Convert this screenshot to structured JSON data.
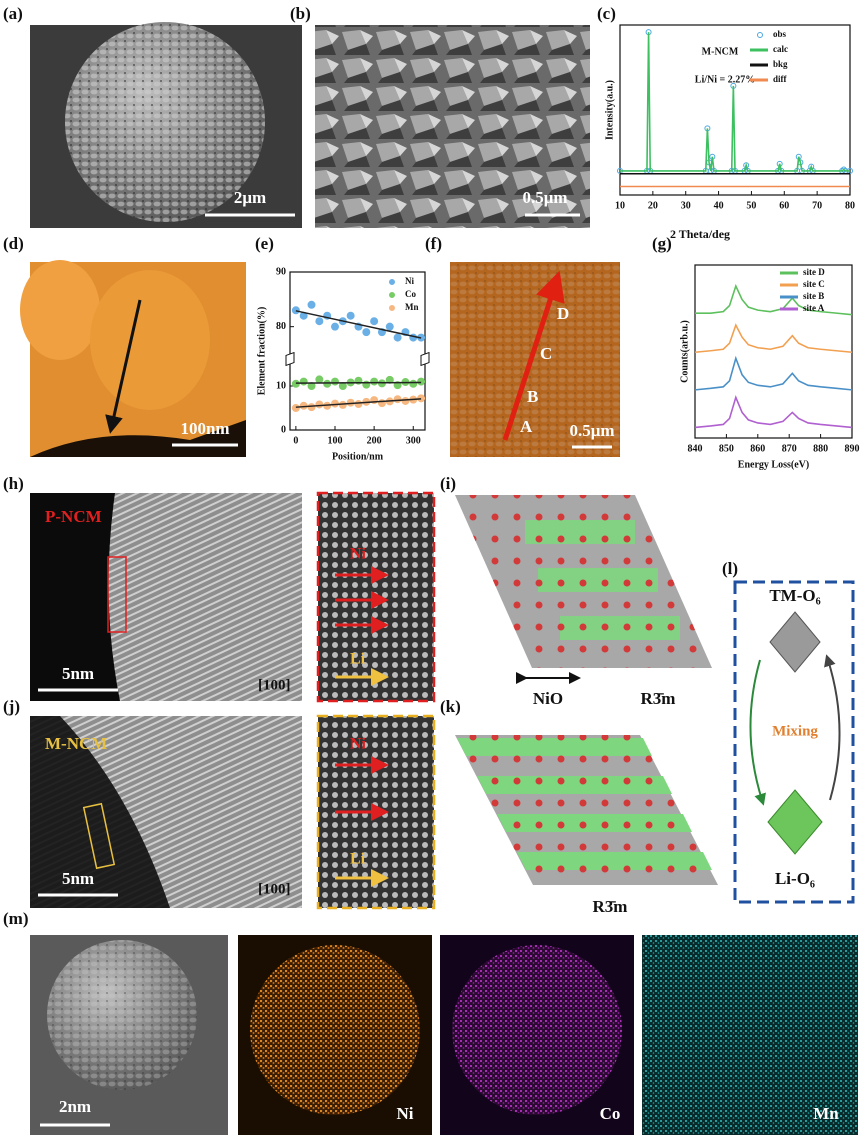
{
  "figure": {
    "a": {
      "label": "(a)",
      "scale_bar": "2μm"
    },
    "b": {
      "label": "(b)",
      "scale_bar": "0.5μm"
    },
    "d": {
      "label": "(d)",
      "scale_bar": "100nm"
    },
    "f": {
      "label": "(f)",
      "scale_bar": "0.5μm",
      "points": [
        "A",
        "B",
        "C",
        "D"
      ]
    },
    "h": {
      "label": "(h)",
      "sample": "P-NCM",
      "scale_bar": "5nm",
      "zone_axis": "[100]",
      "inset": [
        "Ni",
        "Li"
      ]
    },
    "i": {
      "label": "(i)",
      "phases": [
        "NiO",
        "R3̄m"
      ]
    },
    "j": {
      "label": "(j)",
      "sample": "M-NCM",
      "scale_bar": "5nm",
      "zone_axis": "[100]",
      "inset": [
        "Ni",
        "Li"
      ]
    },
    "k": {
      "label": "(k)",
      "phase": "R3̄m"
    },
    "l": {
      "label": "(l)",
      "top": "TM-O₆",
      "middle": "Mixing",
      "bottom": "Li-O₆"
    },
    "m": {
      "label": "(m)",
      "scale_bar": "2nm",
      "maps": [
        "Ni",
        "Co",
        "Mn"
      ]
    }
  },
  "chart_data": [
    {
      "type": "line",
      "panel_label": "(c)",
      "title": "M-NCM",
      "annotation": "Li/Ni = 2.27%",
      "x_label": "2 Theta/deg",
      "y_label": "Intensity(a.u.)",
      "x": [
        10,
        18.2,
        18.7,
        19.2,
        36.1,
        36.6,
        37.1,
        37.6,
        38.1,
        38.6,
        44.0,
        44.5,
        45.0,
        47.9,
        48.4,
        48.9,
        58.1,
        58.6,
        59.1,
        63.9,
        64.4,
        64.9,
        65.4,
        67.7,
        68.2,
        68.7,
        77.6,
        78.1,
        78.6,
        80
      ],
      "series": [
        {
          "name": "obs",
          "color": "#4aa8e0",
          "style": "open-circle",
          "values": [
            2,
            2,
            100,
            2,
            2,
            32,
            8,
            2,
            12,
            2,
            2,
            62,
            2,
            2,
            6,
            2,
            2,
            7,
            2,
            2,
            12,
            8,
            2,
            2,
            5,
            2,
            2,
            3,
            2,
            2
          ]
        },
        {
          "name": "calc",
          "color": "#3cc060",
          "style": "line",
          "values": [
            2,
            2,
            100,
            2,
            2,
            32,
            8,
            2,
            12,
            2,
            2,
            62,
            2,
            2,
            6,
            2,
            2,
            7,
            2,
            2,
            12,
            8,
            2,
            2,
            5,
            2,
            2,
            3,
            2,
            2
          ]
        },
        {
          "name": "bkg",
          "color": "#111111",
          "style": "line",
          "values": [
            0,
            0,
            0,
            0,
            0,
            0,
            0,
            0,
            0,
            0,
            0,
            0,
            0,
            0,
            0,
            0,
            0,
            0,
            0,
            0,
            0,
            0,
            0,
            0,
            0,
            0,
            0,
            0,
            0,
            0
          ]
        },
        {
          "name": "diff",
          "color": "#f08a50",
          "style": "line",
          "values": [
            -9,
            -9,
            -9,
            -9,
            -9,
            -9,
            -9,
            -9,
            -9,
            -9,
            -9,
            -9,
            -9,
            -9,
            -9,
            -9,
            -9,
            -9,
            -9,
            -9,
            -9,
            -9,
            -9,
            -9,
            -9,
            -9,
            -9,
            -9,
            -9,
            -9
          ]
        }
      ],
      "xlim": [
        10,
        80
      ],
      "xticks": [
        10,
        20,
        30,
        40,
        50,
        60,
        70,
        80
      ],
      "ylim": [
        -15,
        105
      ],
      "legend": "upper right"
    },
    {
      "type": "scatter",
      "panel_label": "(e)",
      "x_label": "Position/nm",
      "y_label": "Element fraction(%)",
      "x": [
        0,
        20,
        40,
        60,
        80,
        100,
        120,
        140,
        160,
        180,
        200,
        220,
        240,
        260,
        280,
        300,
        320
      ],
      "series": [
        {
          "name": "Ni",
          "color": "#6ab0e6",
          "values": [
            83,
            82,
            84,
            81,
            82,
            80,
            81,
            82,
            80,
            79,
            81,
            79,
            80,
            78,
            79,
            78,
            78
          ]
        },
        {
          "name": "Co",
          "color": "#78cc66",
          "values": [
            10.5,
            11,
            10,
            11.5,
            10.5,
            11,
            10,
            10.8,
            11.2,
            10.3,
            11,
            10.6,
            11.4,
            10.2,
            10.9,
            10.5,
            11
          ]
        },
        {
          "name": "Mn",
          "color": "#f6b880",
          "values": [
            5,
            5.5,
            5.2,
            5.8,
            5.5,
            6,
            5.7,
            6.2,
            5.9,
            6.4,
            6.8,
            6.1,
            6.5,
            7,
            6.6,
            6.9,
            7.2
          ]
        }
      ],
      "xlim": [
        -15,
        330
      ],
      "xticks": [
        0,
        100,
        200,
        300
      ],
      "ylim": [
        0,
        90
      ],
      "ybreak": [
        15,
        75
      ],
      "yticks": [
        0,
        10,
        80,
        90
      ],
      "fit_lines": true,
      "legend": "upper right"
    },
    {
      "type": "line",
      "panel_label": "(g)",
      "x_label": "Energy Loss(eV)",
      "y_label": "Counts(arb.u.)",
      "x": [
        840,
        845,
        849,
        851,
        853,
        855,
        857,
        860,
        864,
        868,
        871,
        873,
        876,
        880,
        885,
        890
      ],
      "series": [
        {
          "name": "site D",
          "color": "#5cc05c",
          "values": [
            78,
            78,
            79,
            83,
            96,
            87,
            82,
            80,
            79,
            81,
            88,
            83,
            80,
            79,
            78,
            77
          ]
        },
        {
          "name": "site C",
          "color": "#f2a050",
          "values": [
            52,
            53,
            54,
            58,
            70,
            62,
            57,
            55,
            54,
            56,
            63,
            58,
            55,
            54,
            53,
            52
          ]
        },
        {
          "name": "site B",
          "color": "#4a90c8",
          "values": [
            27,
            28,
            29,
            33,
            48,
            37,
            32,
            30,
            29,
            31,
            38,
            33,
            30,
            29,
            28,
            27
          ]
        },
        {
          "name": "site A",
          "color": "#b060d0",
          "values": [
            2,
            3,
            4,
            8,
            22,
            12,
            7,
            5,
            4,
            6,
            12,
            8,
            5,
            4,
            3,
            2
          ]
        }
      ],
      "xlim": [
        840,
        890
      ],
      "xticks": [
        840,
        850,
        860,
        870,
        880,
        890
      ],
      "ylim": [
        -5,
        110
      ],
      "legend": "upper right"
    }
  ]
}
